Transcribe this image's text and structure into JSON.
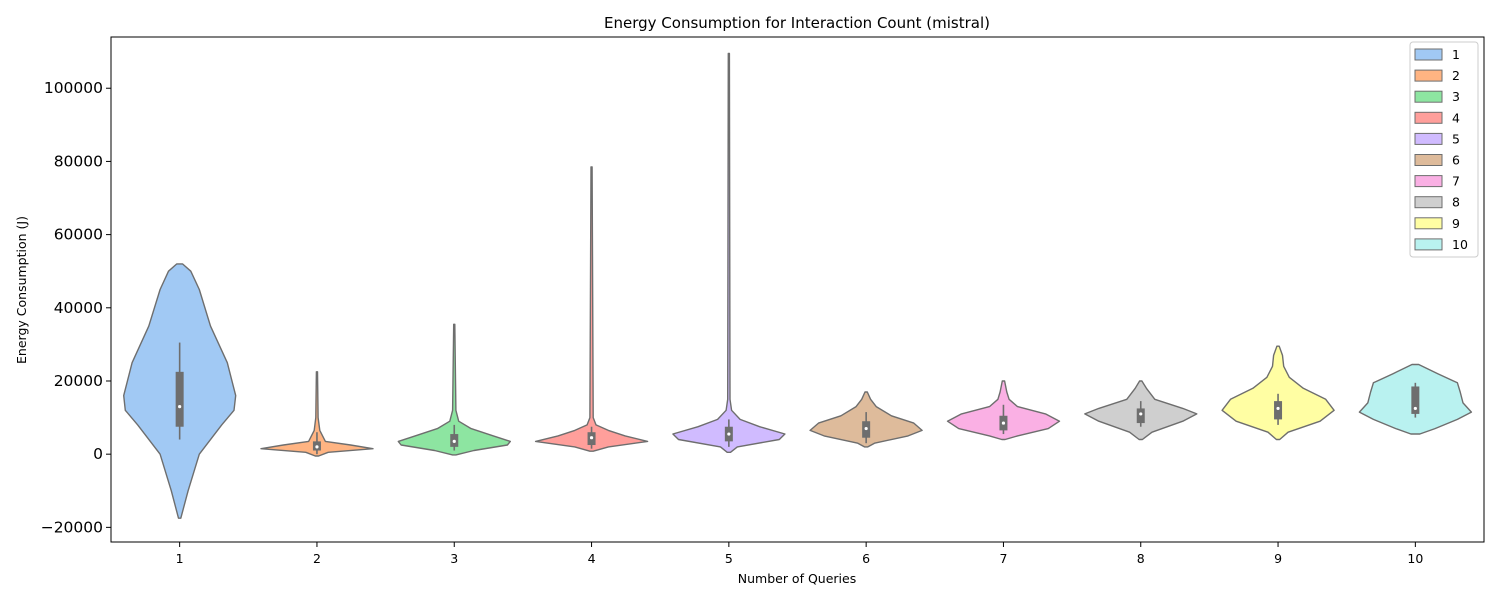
{
  "chart_data": {
    "type": "violin",
    "title": "Energy Consumption for Interaction Count (mistral)",
    "xlabel": "Number of Queries",
    "ylabel": "Energy Consumption (J)",
    "ylim": [
      -24000,
      114000
    ],
    "yticks": [
      -20000,
      0,
      20000,
      40000,
      60000,
      80000,
      100000
    ],
    "grid": false,
    "legend": {
      "placement": "top-right"
    },
    "categories": [
      "1",
      "2",
      "3",
      "4",
      "5",
      "6",
      "7",
      "8",
      "9",
      "10"
    ],
    "series": [
      {
        "name": "1",
        "color": "#a1c9f4",
        "box": {
          "whisker_low": 4000,
          "q1": 7500,
          "median": 13000,
          "q3": 22500,
          "whisker_high": 30500
        },
        "profile": [
          [
            -17500,
            0.02
          ],
          [
            -10000,
            0.15
          ],
          [
            0,
            0.35
          ],
          [
            8000,
            0.75
          ],
          [
            12000,
            0.97
          ],
          [
            16000,
            1.0
          ],
          [
            25000,
            0.85
          ],
          [
            35000,
            0.55
          ],
          [
            45000,
            0.35
          ],
          [
            50000,
            0.2
          ],
          [
            52000,
            0.05
          ]
        ]
      },
      {
        "name": "2",
        "color": "#ffb482",
        "box": {
          "whisker_low": 0,
          "q1": 1000,
          "median": 2000,
          "q3": 3500,
          "whisker_high": 6000
        },
        "profile": [
          [
            -500,
            0.03
          ],
          [
            500,
            0.2
          ],
          [
            1500,
            1.0
          ],
          [
            2500,
            0.6
          ],
          [
            3500,
            0.15
          ],
          [
            5000,
            0.1
          ],
          [
            6500,
            0.05
          ],
          [
            10000,
            0.02
          ],
          [
            22500,
            0.01
          ]
        ]
      },
      {
        "name": "3",
        "color": "#8de5a1",
        "box": {
          "whisker_low": 1000,
          "q1": 2000,
          "median": 3500,
          "q3": 5500,
          "whisker_high": 8000
        },
        "profile": [
          [
            -200,
            0.03
          ],
          [
            1000,
            0.35
          ],
          [
            2500,
            0.95
          ],
          [
            3500,
            1.0
          ],
          [
            5000,
            0.7
          ],
          [
            7000,
            0.3
          ],
          [
            9000,
            0.08
          ],
          [
            12000,
            0.03
          ],
          [
            35500,
            0.01
          ]
        ]
      },
      {
        "name": "4",
        "color": "#ff9f9b",
        "box": {
          "whisker_low": 1500,
          "q1": 2500,
          "median": 4500,
          "q3": 6000,
          "whisker_high": 7500
        },
        "profile": [
          [
            800,
            0.03
          ],
          [
            2000,
            0.3
          ],
          [
            3500,
            1.0
          ],
          [
            5000,
            0.6
          ],
          [
            6500,
            0.3
          ],
          [
            8000,
            0.08
          ],
          [
            10000,
            0.03
          ],
          [
            78500,
            0.01
          ]
        ]
      },
      {
        "name": "5",
        "color": "#d0bbff",
        "box": {
          "whisker_low": 2000,
          "q1": 3500,
          "median": 5500,
          "q3": 7500,
          "whisker_high": 9500
        },
        "profile": [
          [
            500,
            0.03
          ],
          [
            2000,
            0.15
          ],
          [
            4000,
            0.9
          ],
          [
            5500,
            1.0
          ],
          [
            7500,
            0.55
          ],
          [
            9500,
            0.2
          ],
          [
            12000,
            0.05
          ],
          [
            15000,
            0.02
          ],
          [
            109500,
            0.01
          ]
        ]
      },
      {
        "name": "6",
        "color": "#debb9b",
        "box": {
          "whisker_low": 3000,
          "q1": 4500,
          "median": 7000,
          "q3": 9000,
          "whisker_high": 11500
        },
        "profile": [
          [
            2000,
            0.03
          ],
          [
            3000,
            0.15
          ],
          [
            5000,
            0.75
          ],
          [
            6500,
            1.0
          ],
          [
            8500,
            0.85
          ],
          [
            10500,
            0.45
          ],
          [
            13000,
            0.18
          ],
          [
            15000,
            0.08
          ],
          [
            17000,
            0.02
          ]
        ]
      },
      {
        "name": "7",
        "color": "#fab0e4",
        "box": {
          "whisker_low": 5500,
          "q1": 6500,
          "median": 8500,
          "q3": 10500,
          "whisker_high": 13500
        },
        "profile": [
          [
            4000,
            0.03
          ],
          [
            5000,
            0.25
          ],
          [
            7000,
            0.8
          ],
          [
            9000,
            1.0
          ],
          [
            11000,
            0.75
          ],
          [
            13000,
            0.25
          ],
          [
            15000,
            0.1
          ],
          [
            17000,
            0.06
          ],
          [
            20000,
            0.02
          ]
        ]
      },
      {
        "name": "8",
        "color": "#cfcfcf",
        "box": {
          "whisker_low": 7500,
          "q1": 8500,
          "median": 11000,
          "q3": 12500,
          "whisker_high": 14500
        },
        "profile": [
          [
            4000,
            0.03
          ],
          [
            6000,
            0.2
          ],
          [
            9000,
            0.75
          ],
          [
            11000,
            1.0
          ],
          [
            12500,
            0.75
          ],
          [
            15000,
            0.25
          ],
          [
            18000,
            0.1
          ],
          [
            20000,
            0.02
          ]
        ]
      },
      {
        "name": "9",
        "color": "#fffea3",
        "box": {
          "whisker_low": 8000,
          "q1": 9500,
          "median": 12500,
          "q3": 14500,
          "whisker_high": 16500
        },
        "profile": [
          [
            4000,
            0.03
          ],
          [
            6000,
            0.18
          ],
          [
            9000,
            0.75
          ],
          [
            12000,
            1.0
          ],
          [
            15000,
            0.85
          ],
          [
            18000,
            0.45
          ],
          [
            21000,
            0.2
          ],
          [
            24000,
            0.1
          ],
          [
            27000,
            0.08
          ],
          [
            29500,
            0.02
          ]
        ]
      },
      {
        "name": "10",
        "color": "#b9f2f0",
        "box": {
          "whisker_low": 10000,
          "q1": 11000,
          "median": 12500,
          "q3": 18500,
          "whisker_high": 19500
        },
        "profile": [
          [
            5500,
            0.08
          ],
          [
            7000,
            0.35
          ],
          [
            9500,
            0.75
          ],
          [
            11500,
            1.0
          ],
          [
            14000,
            0.85
          ],
          [
            17000,
            0.8
          ],
          [
            19500,
            0.75
          ],
          [
            22000,
            0.4
          ],
          [
            24500,
            0.06
          ]
        ]
      }
    ]
  }
}
